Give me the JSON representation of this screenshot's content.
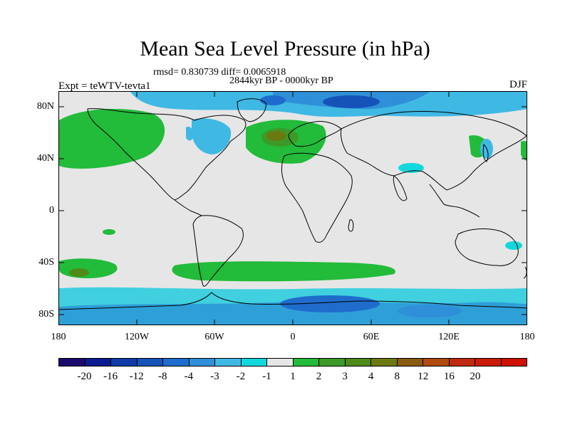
{
  "title": "Mean Sea Level Pressure (in hPa)",
  "stats": "rmsd= 0.830739 diff= 0.0065918",
  "subtitle": "2844kyr BP - 0000kyr BP",
  "expt": "Expt = teWTV-tevta1",
  "season": "DJF",
  "map": {
    "lat_labels": [
      "80N",
      "40N",
      "0",
      "40S",
      "80S"
    ],
    "lon_labels": [
      "180",
      "120W",
      "60W",
      "0",
      "60E",
      "120E",
      "180"
    ],
    "background_color": "#e6e6e6"
  },
  "colorbar": {
    "colors": [
      "#1a0a6e",
      "#0c1a8f",
      "#0f3aa8",
      "#1553b8",
      "#1e6ccc",
      "#2f8fd8",
      "#40b8e4",
      "#10d8dc",
      "#e6e6e6",
      "#22bb3a",
      "#3d9a28",
      "#4f8a18",
      "#6b7a10",
      "#8a5a10",
      "#b04a10",
      "#c02a10",
      "#cc1a0a",
      "#d01000"
    ],
    "labels": [
      "-20",
      "-16",
      "-12",
      "-8",
      "-4",
      "-3",
      "-2",
      "-1",
      "1",
      "2",
      "3",
      "4",
      "8",
      "12",
      "16",
      "20"
    ]
  }
}
